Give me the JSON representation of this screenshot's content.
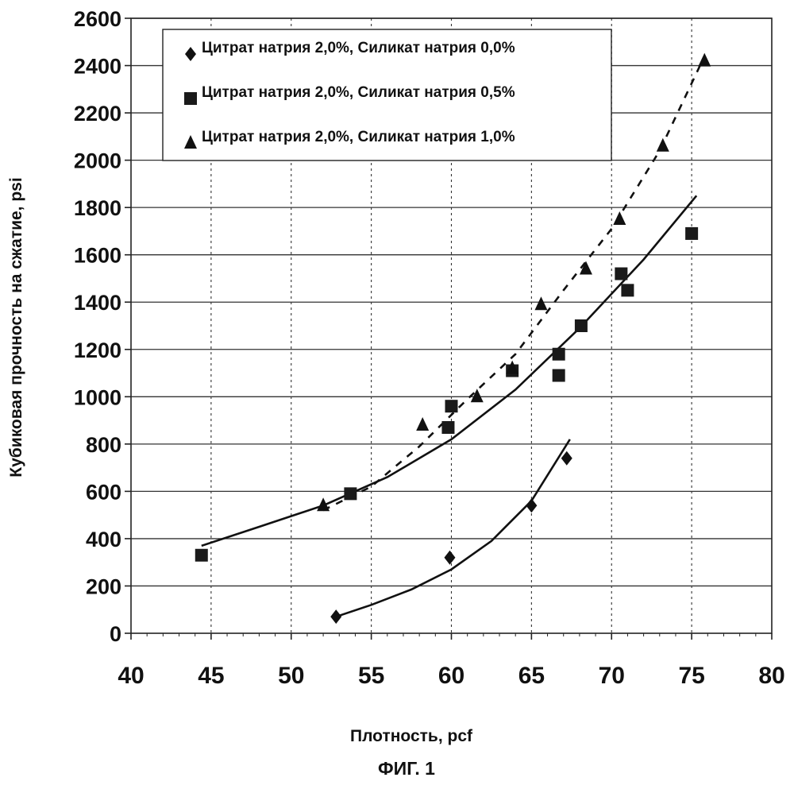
{
  "figure_caption": "ФИГ. 1",
  "chart_data": {
    "type": "scatter",
    "xlabel": "Плотность, pcf",
    "ylabel": "Кубиковая прочность на сжатие, psi",
    "xlim": [
      40,
      80
    ],
    "ylim": [
      0,
      2600
    ],
    "x_ticks": [
      "40",
      "45",
      "50",
      "55",
      "60",
      "65",
      "70",
      "75",
      "80"
    ],
    "y_ticks": [
      "0",
      "200",
      "400",
      "600",
      "800",
      "1000",
      "1200",
      "1400",
      "1600",
      "1800",
      "2000",
      "2200",
      "2400",
      "2600"
    ],
    "grid": true,
    "legend_position": "top-left",
    "series": [
      {
        "name": "Цитрат натрия 2,0%, Силикат натрия 0,0%",
        "marker": "diamond",
        "color": "#111111",
        "points": [
          [
            52.8,
            70
          ],
          [
            59.9,
            320
          ],
          [
            65.0,
            540
          ],
          [
            67.2,
            740
          ]
        ],
        "trendline": {
          "style": "solid",
          "x_range": [
            52.8,
            67.4
          ],
          "points": [
            [
              52.8,
              70
            ],
            [
              55,
              120
            ],
            [
              57.5,
              185
            ],
            [
              60,
              270
            ],
            [
              62.5,
              390
            ],
            [
              65,
              560
            ],
            [
              67.4,
              820
            ]
          ]
        }
      },
      {
        "name": "Цитрат натрия 2,0%, Силикат натрия 0,5%",
        "marker": "square",
        "color": "#111111",
        "points": [
          [
            44.4,
            330
          ],
          [
            53.7,
            590
          ],
          [
            59.8,
            870
          ],
          [
            60.0,
            960
          ],
          [
            63.8,
            1110
          ],
          [
            66.7,
            1180
          ],
          [
            66.7,
            1090
          ],
          [
            68.1,
            1300
          ],
          [
            70.6,
            1520
          ],
          [
            71.0,
            1450
          ],
          [
            75.0,
            1690
          ]
        ],
        "trendline": {
          "style": "solid",
          "x_range": [
            44.4,
            75.3
          ],
          "points": [
            [
              44.4,
              370
            ],
            [
              48,
              450
            ],
            [
              52,
              540
            ],
            [
              56,
              660
            ],
            [
              60,
              820
            ],
            [
              64,
              1030
            ],
            [
              68,
              1290
            ],
            [
              72,
              1580
            ],
            [
              75.3,
              1850
            ]
          ]
        }
      },
      {
        "name": "Цитрат натрия 2,0%, Силикат натрия 1,0%",
        "marker": "triangle",
        "color": "#111111",
        "points": [
          [
            52.0,
            540
          ],
          [
            58.2,
            880
          ],
          [
            61.6,
            1000
          ],
          [
            63.8,
            1120
          ],
          [
            65.6,
            1390
          ],
          [
            68.4,
            1540
          ],
          [
            70.5,
            1750
          ],
          [
            73.2,
            2060
          ],
          [
            75.8,
            2420
          ]
        ],
        "trendline": {
          "style": "dashed",
          "x_range": [
            52.0,
            75.8
          ],
          "points": [
            [
              52,
              520
            ],
            [
              55,
              620
            ],
            [
              58,
              790
            ],
            [
              61,
              990
            ],
            [
              64,
              1180
            ],
            [
              67,
              1450
            ],
            [
              70,
              1710
            ],
            [
              73,
              2040
            ],
            [
              75.8,
              2440
            ]
          ]
        }
      }
    ]
  }
}
